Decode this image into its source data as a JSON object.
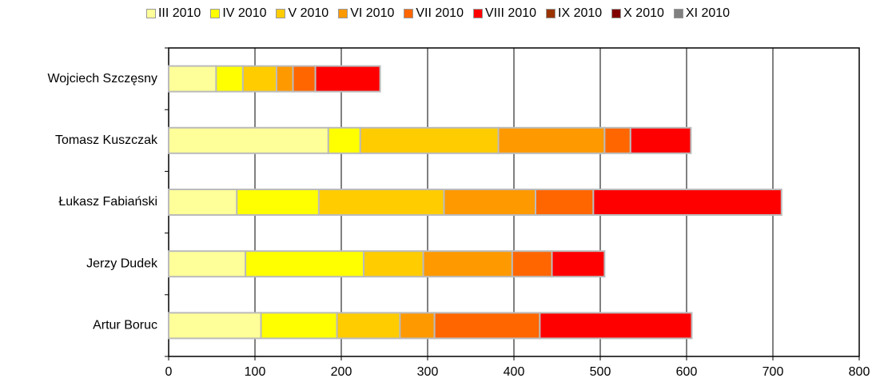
{
  "chart_data": {
    "type": "stacked_barh",
    "categories": [
      "Wojciech Szczęsny",
      "Tomasz Kuszczak",
      "Łukasz Fabiański",
      "Jerzy Dudek",
      "Artur Boruc"
    ],
    "series": [
      {
        "name": "III 2010",
        "color": "#ffff99",
        "values": [
          55,
          185,
          79,
          89,
          107
        ]
      },
      {
        "name": "IV 2010",
        "color": "#ffff00",
        "values": [
          31,
          37,
          95,
          137,
          88
        ]
      },
      {
        "name": "V 2010",
        "color": "#ffcc00",
        "values": [
          39,
          160,
          145,
          69,
          73
        ]
      },
      {
        "name": "VI 2010",
        "color": "#ff9900",
        "values": [
          19,
          123,
          106,
          103,
          40
        ]
      },
      {
        "name": "VII 2010",
        "color": "#ff6600",
        "values": [
          26,
          30,
          67,
          46,
          122
        ]
      },
      {
        "name": "VIII 2010",
        "color": "#ff0000",
        "values": [
          75,
          70,
          218,
          61,
          176
        ]
      },
      {
        "name": "IX 2010",
        "color": "#993300",
        "values": [
          0,
          0,
          0,
          0,
          0
        ]
      },
      {
        "name": "X 2010",
        "color": "#800000",
        "values": [
          0,
          0,
          0,
          0,
          0
        ]
      },
      {
        "name": "XI 2010",
        "color": "#808080",
        "values": [
          0,
          0,
          0,
          0,
          0
        ]
      }
    ],
    "xlim": [
      0,
      800
    ],
    "xticks": [
      0,
      100,
      200,
      300,
      400,
      500,
      600,
      700,
      800
    ],
    "grid": true,
    "legend": "top"
  }
}
